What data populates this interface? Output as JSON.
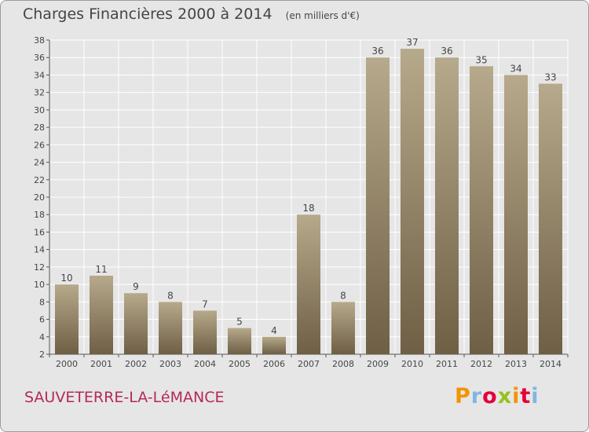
{
  "header": {
    "title": "Charges Financières 2000 à 2014",
    "subtitle": "(en milliers d'€)"
  },
  "footer": {
    "commune": "SAUVETERRE-LA-LéMANCE",
    "logo_text": "Proxiti",
    "logo_letter_colors": [
      "#f29400",
      "#7fb6e3",
      "#e4003a",
      "#97c11f",
      "#f29400",
      "#e4003a",
      "#7fb6e3"
    ]
  },
  "colors": {
    "background": "#e6e6e6",
    "bar_light": "#b7a98b",
    "bar_dark": "#6e5f45",
    "grid": "#ffffff",
    "text": "#454545"
  },
  "chart_data": {
    "type": "bar",
    "categories": [
      "2000",
      "2001",
      "2002",
      "2003",
      "2004",
      "2005",
      "2006",
      "2007",
      "2008",
      "2009",
      "2010",
      "2011",
      "2012",
      "2013",
      "2014"
    ],
    "values": [
      10,
      11,
      9,
      8,
      7,
      5,
      4,
      18,
      8,
      36,
      37,
      36,
      35,
      34,
      33
    ],
    "ylim": [
      2,
      38
    ],
    "yticks": [
      2,
      4,
      6,
      8,
      10,
      12,
      14,
      16,
      18,
      20,
      22,
      24,
      26,
      28,
      30,
      32,
      34,
      36,
      38
    ],
    "grid": true,
    "data_labels": true
  }
}
